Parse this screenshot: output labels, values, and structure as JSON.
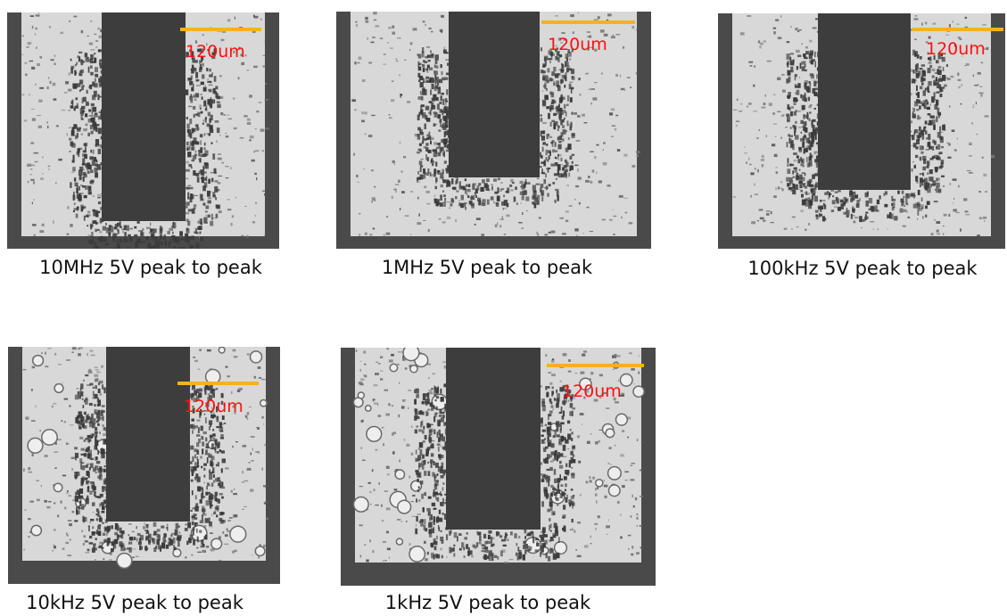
{
  "panels": [
    {
      "caption": "10MHz 5V peak to peak",
      "scale_label": "120um"
    },
    {
      "caption": "1MHz 5V peak to peak",
      "scale_label": "120um"
    },
    {
      "caption": "100kHz 5V peak to peak",
      "scale_label": "120um"
    },
    {
      "caption": "10kHz 5V peak to peak",
      "scale_label": "120um"
    },
    {
      "caption": "1kHz 5V peak to peak",
      "scale_label": "120um"
    }
  ],
  "colors": {
    "scale_bar": "#f5b21b",
    "scale_label": "#ff1010",
    "electrode": "#3d3d3d",
    "frame": "#4a4a4a",
    "substrate": "#d8d8d8"
  }
}
